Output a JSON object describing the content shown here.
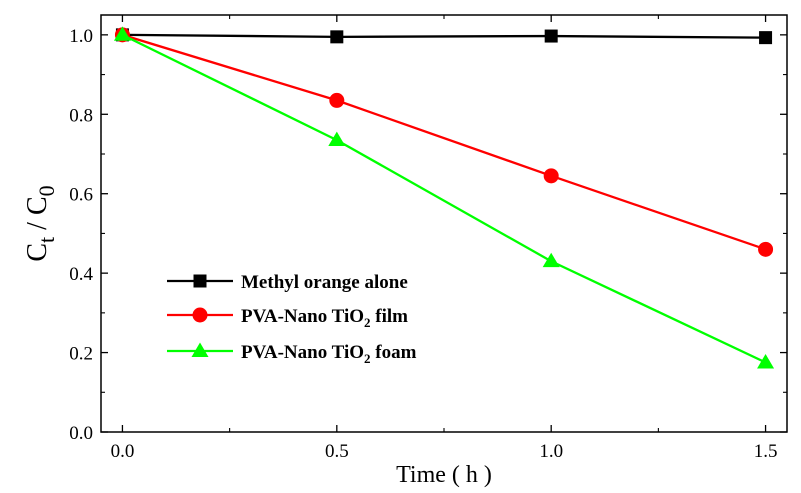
{
  "chart_data": {
    "type": "line",
    "x": [
      0.0,
      0.5,
      1.0,
      1.5
    ],
    "series": [
      {
        "name": "Methyl orange alone",
        "values": [
          1.0,
          0.995,
          0.997,
          0.993
        ],
        "color": "#000000",
        "marker": "square"
      },
      {
        "name": "PVA-Nano TiO2 film",
        "values": [
          1.0,
          0.835,
          0.645,
          0.46
        ],
        "color": "#ff0000",
        "marker": "circle"
      },
      {
        "name": "PVA-Nano TiO2 foam",
        "values": [
          1.0,
          0.735,
          0.43,
          0.175
        ],
        "color": "#00ff00",
        "marker": "triangle"
      }
    ],
    "xlabel": "Time ( h )",
    "ylabel": {
      "main": "C",
      "sub1": "t",
      "slash": " / C",
      "sub2": "0"
    },
    "xticks": [
      "0.0",
      "0.5",
      "1.0",
      "1.5"
    ],
    "yticks": [
      "0.0",
      "0.2",
      "0.4",
      "0.6",
      "0.8",
      "1.0"
    ],
    "xlim": [
      -0.05,
      1.55
    ],
    "ylim": [
      0.0,
      1.05
    ],
    "legend": {
      "placement": "lower-left",
      "entries": [
        {
          "prefix": "Methyl orange alone",
          "sub": "",
          "suffix": ""
        },
        {
          "prefix": "PVA-Nano TiO",
          "sub": "2",
          "suffix": "film"
        },
        {
          "prefix": "PVA-Nano TiO",
          "sub": "2",
          "suffix": "foam"
        }
      ]
    },
    "grid": false
  }
}
